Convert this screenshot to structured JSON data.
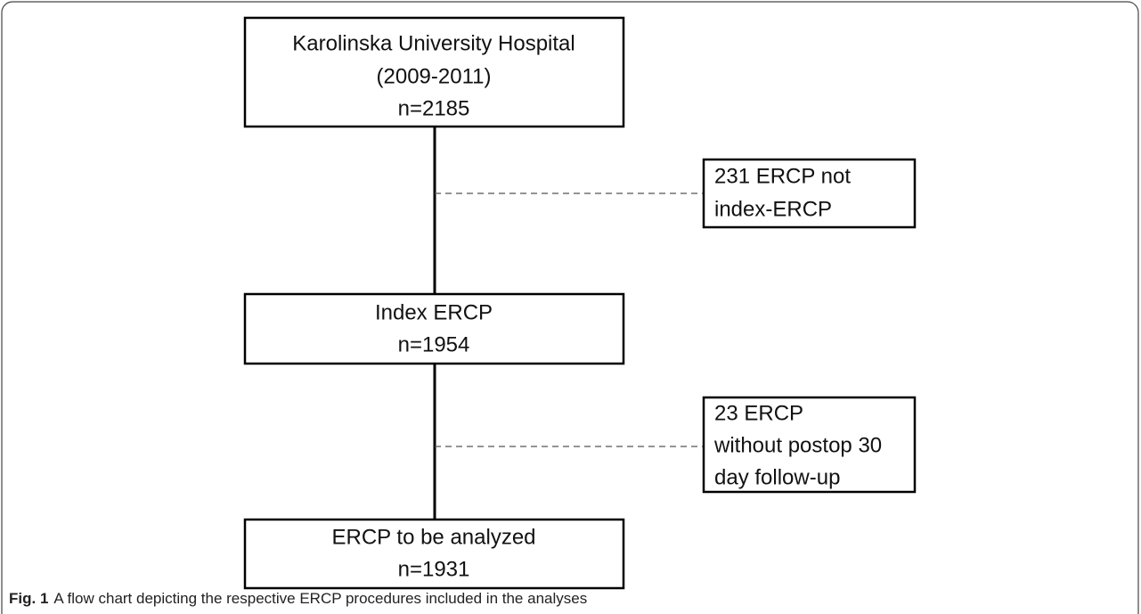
{
  "nodes": [
    {
      "lines": [
        "Karolinska University Hospital",
        "(2009-2011)",
        "n=2185"
      ]
    },
    {
      "lines": [
        "231 ERCP not",
        "index-ERCP"
      ]
    },
    {
      "lines": [
        "Index ERCP",
        "n=1954"
      ]
    },
    {
      "lines": [
        "23 ERCP",
        "without postop 30",
        "day follow-up"
      ]
    },
    {
      "lines": [
        "ERCP to be analyzed",
        "n=1931"
      ]
    }
  ],
  "caption": {
    "label": "Fig. 1",
    "text": "A flow chart depicting the respective ERCP procedures included in the analyses"
  }
}
